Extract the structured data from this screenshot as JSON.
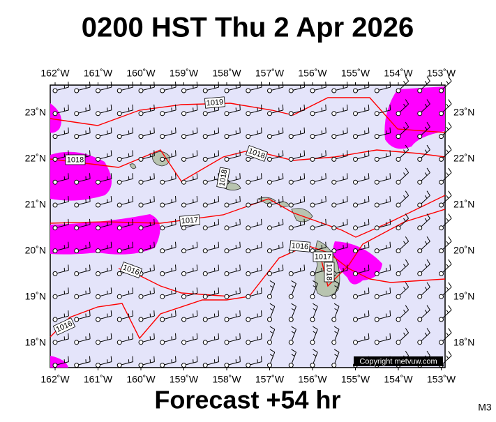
{
  "header": {
    "title": "0200 HST Thu 2 Apr 2026"
  },
  "map": {
    "lon_labels": [
      "162˚W",
      "161˚W",
      "160˚W",
      "159˚W",
      "158˚W",
      "157˚W",
      "156˚W",
      "155˚W",
      "154˚W",
      "153˚W"
    ],
    "lat_labels": [
      "23˚N",
      "22˚N",
      "21˚N",
      "20˚N",
      "19˚N",
      "18˚N"
    ],
    "isobar_labels": [
      "1019",
      "1018",
      "1018",
      "1018",
      "1017",
      "1016",
      "1016",
      "1016",
      "1017",
      "1018"
    ],
    "copyright": "Copyright metvuw.com"
  },
  "footer": {
    "forecast": "Forecast +54 hr",
    "model": "M3"
  }
}
